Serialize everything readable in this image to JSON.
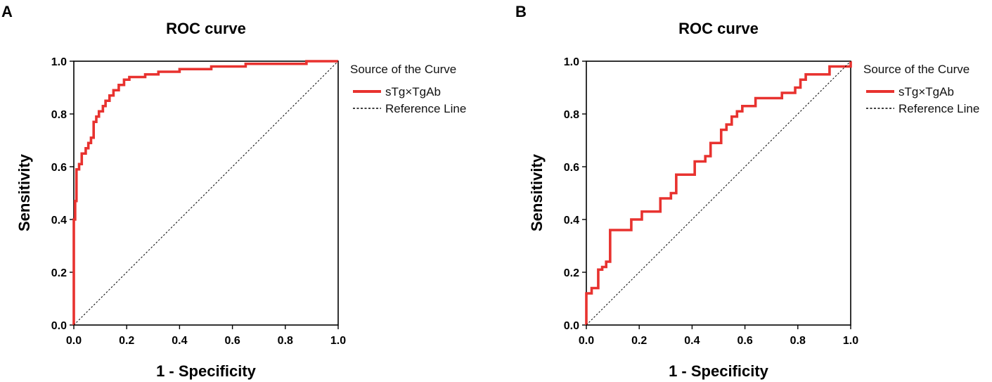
{
  "chart_data": [
    {
      "panel_label": "A",
      "type": "line",
      "title": "ROC curve",
      "xlabel": "1 - Specificity",
      "ylabel": "Sensitivity",
      "xlim": [
        0,
        1
      ],
      "ylim": [
        0,
        1
      ],
      "xticks": [
        "0.0",
        "0.2",
        "0.4",
        "0.6",
        "0.8",
        "1.0"
      ],
      "yticks": [
        "0.0",
        "0.2",
        "0.4",
        "0.6",
        "0.8",
        "1.0"
      ],
      "grid": false,
      "legend": {
        "title": "Source of the Curve",
        "placement": "right",
        "entries": [
          "sTg×TgAb",
          "Reference Line"
        ]
      },
      "series": [
        {
          "name": "sTg×TgAb",
          "color": "#e8322f",
          "style": "solid",
          "x": [
            0,
            0,
            0.005,
            0.005,
            0.01,
            0.01,
            0.02,
            0.02,
            0.03,
            0.03,
            0.045,
            0.045,
            0.055,
            0.055,
            0.065,
            0.065,
            0.075,
            0.075,
            0.085,
            0.085,
            0.095,
            0.095,
            0.11,
            0.11,
            0.12,
            0.12,
            0.135,
            0.135,
            0.15,
            0.15,
            0.17,
            0.17,
            0.19,
            0.19,
            0.21,
            0.21,
            0.27,
            0.27,
            0.32,
            0.32,
            0.4,
            0.4,
            0.52,
            0.52,
            0.65,
            0.65,
            0.88,
            0.88,
            1.0
          ],
          "y": [
            0,
            0.4,
            0.4,
            0.47,
            0.47,
            0.59,
            0.59,
            0.61,
            0.61,
            0.65,
            0.65,
            0.67,
            0.67,
            0.69,
            0.69,
            0.71,
            0.71,
            0.77,
            0.77,
            0.79,
            0.79,
            0.81,
            0.81,
            0.83,
            0.83,
            0.85,
            0.85,
            0.87,
            0.87,
            0.89,
            0.89,
            0.91,
            0.91,
            0.93,
            0.93,
            0.94,
            0.94,
            0.95,
            0.95,
            0.96,
            0.96,
            0.97,
            0.97,
            0.98,
            0.98,
            0.99,
            0.99,
            1.0,
            1.0
          ]
        },
        {
          "name": "Reference Line",
          "color": "#000000",
          "style": "dashed",
          "x": [
            0,
            1
          ],
          "y": [
            0,
            1
          ]
        }
      ]
    },
    {
      "panel_label": "B",
      "type": "line",
      "title": "ROC curve",
      "xlabel": "1 - Specificity",
      "ylabel": "Sensitivity",
      "xlim": [
        0,
        1
      ],
      "ylim": [
        0,
        1
      ],
      "xticks": [
        "0.0",
        "0.2",
        "0.4",
        "0.6",
        "0.8",
        "1.0"
      ],
      "yticks": [
        "0.0",
        "0.2",
        "0.4",
        "0.6",
        "0.8",
        "1.0"
      ],
      "grid": false,
      "legend": {
        "title": "Source of the Curve",
        "placement": "right",
        "entries": [
          "sTg×TgAb",
          "Reference Line"
        ]
      },
      "series": [
        {
          "name": "sTg×TgAb",
          "color": "#e8322f",
          "style": "solid",
          "x": [
            0,
            0,
            0.02,
            0.02,
            0.045,
            0.045,
            0.06,
            0.06,
            0.075,
            0.075,
            0.09,
            0.09,
            0.17,
            0.17,
            0.21,
            0.21,
            0.28,
            0.28,
            0.32,
            0.32,
            0.34,
            0.34,
            0.41,
            0.41,
            0.45,
            0.45,
            0.47,
            0.47,
            0.51,
            0.51,
            0.53,
            0.53,
            0.55,
            0.55,
            0.57,
            0.57,
            0.59,
            0.59,
            0.6,
            0.6,
            0.64,
            0.64,
            0.74,
            0.74,
            0.79,
            0.79,
            0.81,
            0.81,
            0.83,
            0.83,
            0.92,
            0.92,
            1.0,
            1.0
          ],
          "y": [
            0,
            0.12,
            0.12,
            0.14,
            0.14,
            0.21,
            0.21,
            0.22,
            0.22,
            0.24,
            0.24,
            0.36,
            0.36,
            0.4,
            0.4,
            0.43,
            0.43,
            0.48,
            0.48,
            0.5,
            0.5,
            0.57,
            0.57,
            0.62,
            0.62,
            0.64,
            0.64,
            0.69,
            0.69,
            0.74,
            0.74,
            0.76,
            0.76,
            0.79,
            0.79,
            0.81,
            0.81,
            0.83,
            0.83,
            0.83,
            0.83,
            0.86,
            0.86,
            0.88,
            0.88,
            0.9,
            0.9,
            0.93,
            0.93,
            0.95,
            0.95,
            0.98,
            0.98,
            1.0
          ]
        },
        {
          "name": "Reference Line",
          "color": "#000000",
          "style": "dashed",
          "x": [
            0,
            1
          ],
          "y": [
            0,
            1
          ]
        }
      ]
    }
  ]
}
